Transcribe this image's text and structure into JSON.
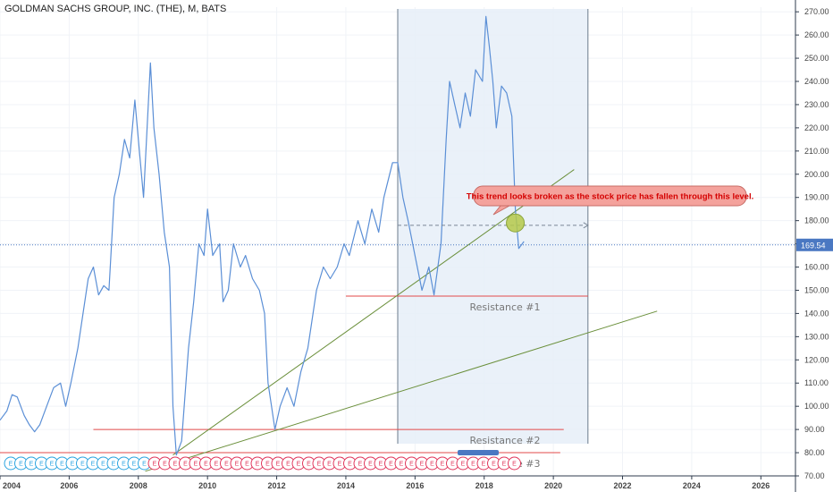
{
  "title": "GOLDMAN SACHS GROUP, INC. (THE), M, BATS",
  "chart_data": {
    "type": "line",
    "xlim": [
      2004,
      2027
    ],
    "ylim": [
      70,
      272
    ],
    "x_ticks": [
      "2004",
      "2006",
      "2008",
      "2010",
      "2012",
      "2014",
      "2016",
      "2018",
      "2020",
      "2022",
      "2024",
      "2026"
    ],
    "y_ticks": [
      "70.00",
      "80.00",
      "90.00",
      "100.00",
      "110.00",
      "120.00",
      "130.00",
      "140.00",
      "150.00",
      "160.00",
      "170.00",
      "180.00",
      "190.00",
      "200.00",
      "210.00",
      "220.00",
      "230.00",
      "240.00",
      "250.00",
      "260.00",
      "270.00"
    ],
    "last_price": 169.54,
    "last_price_label": "169.54",
    "series": [
      {
        "color": "#5b8fd6",
        "points": [
          [
            2004.0,
            94
          ],
          [
            2004.2,
            98
          ],
          [
            2004.35,
            105
          ],
          [
            2004.5,
            104
          ],
          [
            2004.7,
            96
          ],
          [
            2004.85,
            92
          ],
          [
            2005.0,
            89
          ],
          [
            2005.15,
            92
          ],
          [
            2005.35,
            100
          ],
          [
            2005.55,
            108
          ],
          [
            2005.75,
            110
          ],
          [
            2005.9,
            100
          ],
          [
            2006.05,
            110
          ],
          [
            2006.25,
            125
          ],
          [
            2006.4,
            140
          ],
          [
            2006.55,
            155
          ],
          [
            2006.7,
            160
          ],
          [
            2006.85,
            148
          ],
          [
            2007.0,
            152
          ],
          [
            2007.15,
            150
          ],
          [
            2007.3,
            190
          ],
          [
            2007.45,
            200
          ],
          [
            2007.6,
            215
          ],
          [
            2007.75,
            207
          ],
          [
            2007.9,
            232
          ],
          [
            2008.0,
            215
          ],
          [
            2008.15,
            190
          ],
          [
            2008.35,
            248
          ],
          [
            2008.45,
            220
          ],
          [
            2008.6,
            200
          ],
          [
            2008.75,
            175
          ],
          [
            2008.9,
            160
          ],
          [
            2009.0,
            100
          ],
          [
            2009.1,
            79
          ],
          [
            2009.25,
            85
          ],
          [
            2009.45,
            125
          ],
          [
            2009.6,
            145
          ],
          [
            2009.75,
            170
          ],
          [
            2009.9,
            165
          ],
          [
            2010.0,
            185
          ],
          [
            2010.15,
            165
          ],
          [
            2010.35,
            170
          ],
          [
            2010.45,
            145
          ],
          [
            2010.6,
            150
          ],
          [
            2010.75,
            170
          ],
          [
            2010.95,
            160
          ],
          [
            2011.1,
            165
          ],
          [
            2011.3,
            155
          ],
          [
            2011.5,
            150
          ],
          [
            2011.65,
            140
          ],
          [
            2011.75,
            110
          ],
          [
            2011.85,
            100
          ],
          [
            2011.95,
            90
          ],
          [
            2012.1,
            100
          ],
          [
            2012.3,
            108
          ],
          [
            2012.5,
            100
          ],
          [
            2012.7,
            115
          ],
          [
            2012.9,
            125
          ],
          [
            2013.0,
            135
          ],
          [
            2013.15,
            150
          ],
          [
            2013.35,
            160
          ],
          [
            2013.55,
            155
          ],
          [
            2013.75,
            160
          ],
          [
            2013.95,
            170
          ],
          [
            2014.1,
            165
          ],
          [
            2014.35,
            180
          ],
          [
            2014.55,
            170
          ],
          [
            2014.75,
            185
          ],
          [
            2014.95,
            175
          ],
          [
            2015.1,
            190
          ],
          [
            2015.35,
            205
          ],
          [
            2015.5,
            205
          ],
          [
            2015.65,
            190
          ],
          [
            2015.8,
            180
          ],
          [
            2016.0,
            165
          ],
          [
            2016.2,
            150
          ],
          [
            2016.4,
            160
          ],
          [
            2016.55,
            148
          ],
          [
            2016.75,
            170
          ],
          [
            2016.9,
            215
          ],
          [
            2017.0,
            240
          ],
          [
            2017.15,
            230
          ],
          [
            2017.3,
            220
          ],
          [
            2017.45,
            235
          ],
          [
            2017.6,
            225
          ],
          [
            2017.75,
            245
          ],
          [
            2017.95,
            240
          ],
          [
            2018.05,
            268
          ],
          [
            2018.15,
            255
          ],
          [
            2018.25,
            240
          ],
          [
            2018.35,
            220
          ],
          [
            2018.5,
            238
          ],
          [
            2018.65,
            235
          ],
          [
            2018.8,
            225
          ],
          [
            2018.9,
            185
          ],
          [
            2019.0,
            168
          ],
          [
            2019.15,
            171
          ]
        ]
      }
    ],
    "annotations": {
      "shaded_region": {
        "x": [
          2015.5,
          2021.0
        ]
      },
      "resistance_levels": [
        {
          "label": "Resistance #1",
          "y": 147.5,
          "x": [
            2014.0,
            2021.0
          ],
          "color": "#e34a4a"
        },
        {
          "label": "Resistance #2",
          "y": 90.0,
          "x": [
            2006.7,
            2020.3
          ],
          "color": "#e34a4a"
        },
        {
          "label": "Resistance #3",
          "y": 80.0,
          "x": [
            2004.0,
            2020.2
          ],
          "color": "#e34a4a"
        }
      ],
      "trend_lines": [
        {
          "from": [
            2009.0,
            79
          ],
          "to": [
            2020.6,
            202
          ],
          "color": "#6a8f3a"
        },
        {
          "from": [
            2008.2,
            72
          ],
          "to": [
            2023.0,
            141
          ],
          "color": "#6a8f3a"
        }
      ],
      "dashed_level": {
        "y": 178,
        "x": [
          2015.5,
          2021.0
        ]
      },
      "marker": {
        "x": 2018.9,
        "y": 179
      },
      "callout": "This trend looks broken as the stock price has fallen through this level."
    },
    "events": {
      "blue_count": 14,
      "red_count": 36,
      "letter": "E"
    }
  },
  "colors": {
    "price_line": "#5b8fd6",
    "shade": "#e6eef8",
    "axis": "#2f3b4c",
    "resistance": "#e34a4a",
    "trend": "#6a8f3a",
    "price_tag_bg": "#4a78c2"
  }
}
